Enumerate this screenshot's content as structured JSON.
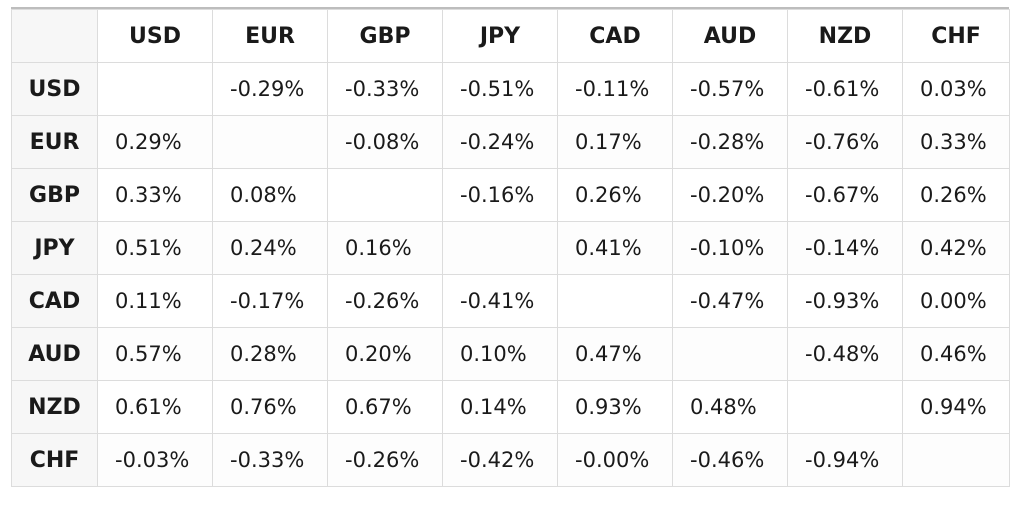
{
  "columns": [
    "USD",
    "EUR",
    "GBP",
    "JPY",
    "CAD",
    "AUD",
    "NZD",
    "CHF"
  ],
  "rows": [
    {
      "label": "USD",
      "values": [
        "",
        "-0.29%",
        "-0.33%",
        "-0.51%",
        "-0.11%",
        "-0.57%",
        "-0.61%",
        "0.03%"
      ]
    },
    {
      "label": "EUR",
      "values": [
        "0.29%",
        "",
        "-0.08%",
        "-0.24%",
        "0.17%",
        "-0.28%",
        "-0.76%",
        "0.33%"
      ]
    },
    {
      "label": "GBP",
      "values": [
        "0.33%",
        "0.08%",
        "",
        "-0.16%",
        "0.26%",
        "-0.20%",
        "-0.67%",
        "0.26%"
      ]
    },
    {
      "label": "JPY",
      "values": [
        "0.51%",
        "0.24%",
        "0.16%",
        "",
        "0.41%",
        "-0.10%",
        "-0.14%",
        "0.42%"
      ]
    },
    {
      "label": "CAD",
      "values": [
        "0.11%",
        "-0.17%",
        "-0.26%",
        "-0.41%",
        "",
        "-0.47%",
        "-0.93%",
        "0.00%"
      ]
    },
    {
      "label": "AUD",
      "values": [
        "0.57%",
        "0.28%",
        "0.20%",
        "0.10%",
        "0.47%",
        "",
        "-0.48%",
        "0.46%"
      ]
    },
    {
      "label": "NZD",
      "values": [
        "0.61%",
        "0.76%",
        "0.67%",
        "0.14%",
        "0.93%",
        "0.48%",
        "",
        "0.94%"
      ]
    },
    {
      "label": "CHF",
      "values": [
        "-0.03%",
        "-0.33%",
        "-0.26%",
        "-0.42%",
        "-0.00%",
        "-0.46%",
        "-0.94%",
        ""
      ]
    }
  ]
}
